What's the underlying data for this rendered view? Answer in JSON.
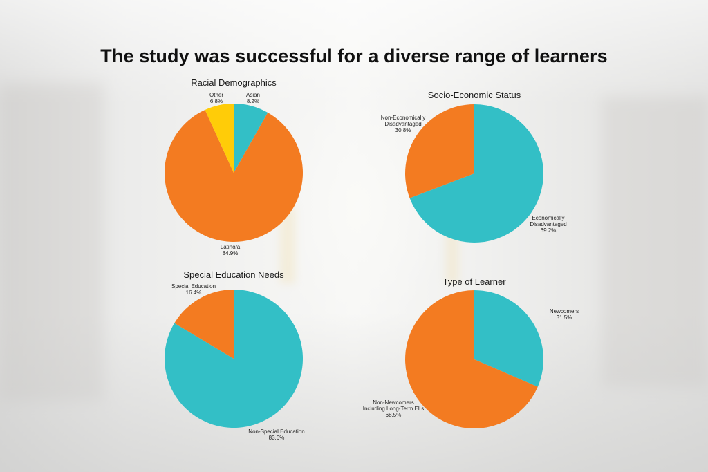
{
  "title": "The study was successful for a diverse range of learners",
  "colors": {
    "teal": "#33bfc6",
    "orange": "#f37b21",
    "yellow": "#ffcc08"
  },
  "chart_data": [
    {
      "type": "pie",
      "title": "Racial Demographics",
      "slices": [
        {
          "name": "Asian",
          "value": 8.2,
          "label": "8.2%",
          "color": "#33bfc6"
        },
        {
          "name": "Latino/a",
          "value": 84.9,
          "label": "84.9%",
          "color": "#f37b21"
        },
        {
          "name": "Other",
          "value": 6.8,
          "label": "6.8%",
          "color": "#ffcc08"
        }
      ]
    },
    {
      "type": "pie",
      "title": "Socio-Economic Status",
      "slices": [
        {
          "name": "Economically Disadvantaged",
          "value": 69.2,
          "label": "69.2%",
          "color": "#33bfc6"
        },
        {
          "name": "Non-Economically Disadvantaged",
          "value": 30.8,
          "label": "30.8%",
          "color": "#f37b21"
        }
      ]
    },
    {
      "type": "pie",
      "title": "Special Education Needs",
      "slices": [
        {
          "name": "Non-Special Education",
          "value": 83.6,
          "label": "83.6%",
          "color": "#33bfc6"
        },
        {
          "name": "Special Education",
          "value": 16.4,
          "label": "16.4%",
          "color": "#f37b21"
        }
      ]
    },
    {
      "type": "pie",
      "title": "Type of Learner",
      "slices": [
        {
          "name": "Newcomers",
          "value": 31.5,
          "label": "31.5%",
          "color": "#33bfc6"
        },
        {
          "name": "Non-Newcomers Including Long-Term ELs",
          "value": 68.5,
          "label": "68.5%",
          "color": "#f37b21"
        }
      ]
    }
  ]
}
